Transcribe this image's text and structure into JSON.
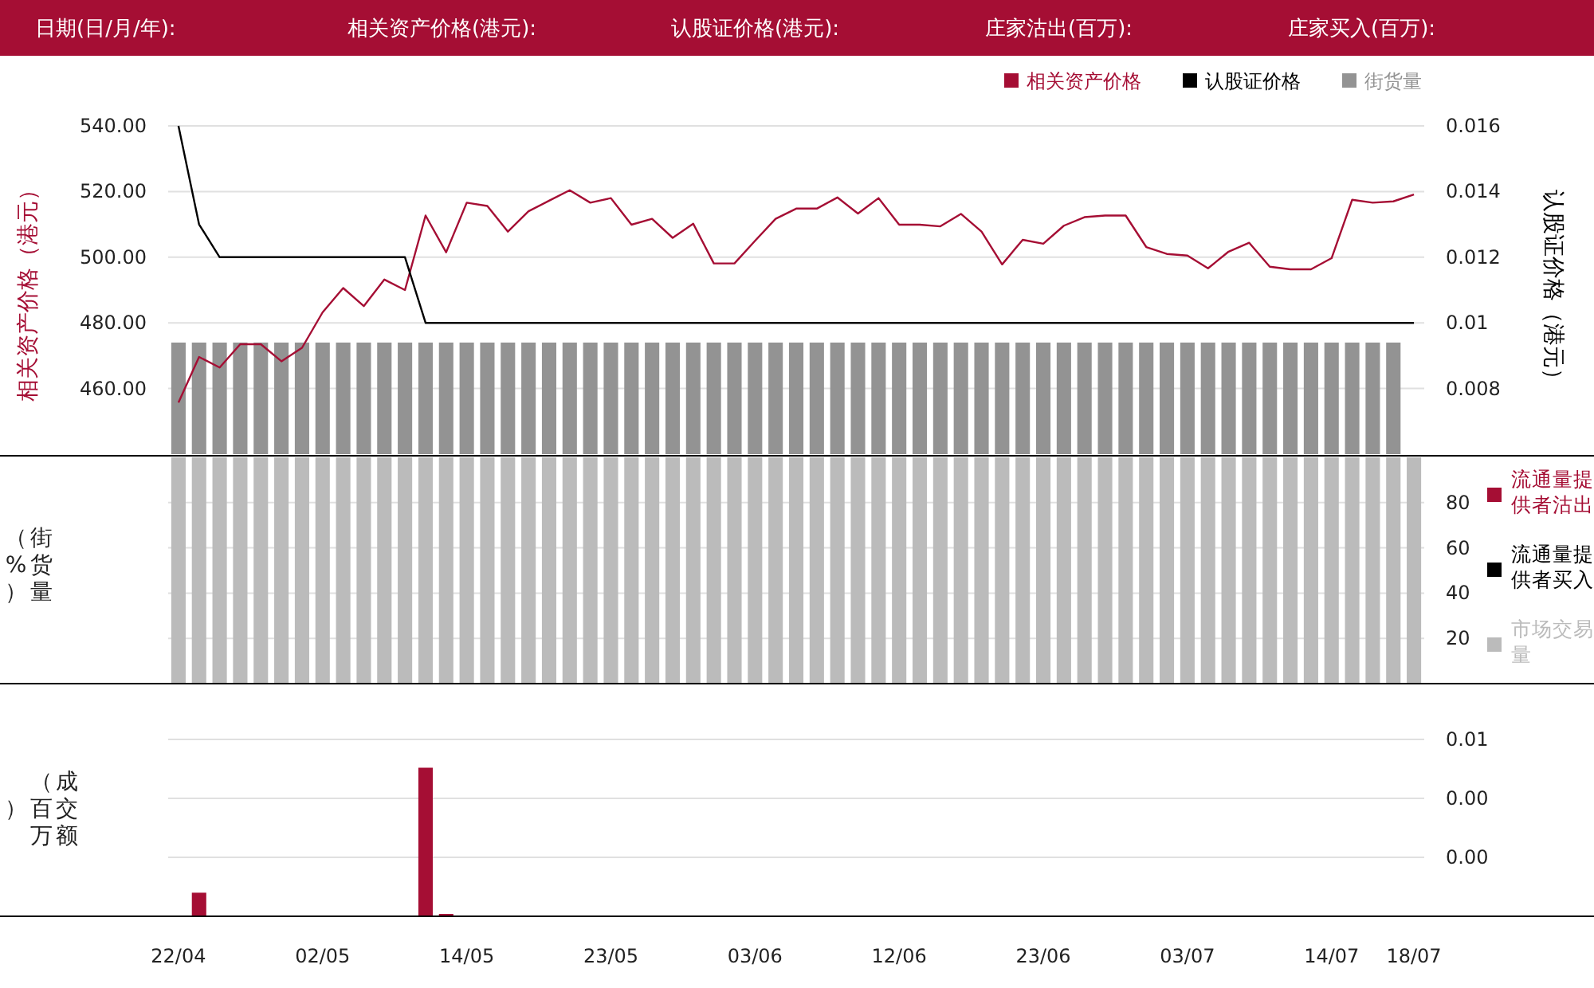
{
  "chart_data": [
    {
      "type": "line",
      "annotations": [
        "日期(日/月/年):",
        "相关资产价格(港元):",
        "认股证价格(港元):",
        "庄家沽出(百万):",
        "庄家买入(百万):"
      ],
      "ylabel": "相关资产价格（港元）",
      "y2label": "认股证价格（港元）",
      "categories": [
        null,
        null,
        null,
        null,
        null,
        null,
        null,
        null,
        null,
        null,
        null,
        null,
        null,
        null,
        null,
        null,
        null,
        null,
        null,
        null,
        null,
        null,
        null,
        null,
        null,
        null,
        null,
        null,
        null,
        null,
        null,
        null,
        null,
        null,
        null,
        null,
        null,
        null,
        null,
        null,
        null,
        null,
        null,
        null,
        null,
        null,
        null,
        null,
        null,
        null,
        null,
        null,
        null,
        null,
        null,
        null,
        null,
        null,
        null,
        null,
        null
      ],
      "ylim": [
        440,
        540
      ],
      "yticks": [
        {
          "value": 460,
          "label": "460.00"
        },
        {
          "value": 480,
          "label": "480.00"
        },
        {
          "value": 500,
          "label": "500.00"
        },
        {
          "value": 520,
          "label": "520.00"
        },
        {
          "value": 540,
          "label": "540.00"
        }
      ],
      "y2lim": [
        0.006,
        0.016
      ],
      "y2ticks": [
        0.008,
        0.01,
        0.012,
        0.014,
        0.016
      ],
      "grid": "y",
      "legend": "top right",
      "tick_labels": "y",
      "series": [
        {
          "name": "相关资产价格",
          "type": "line",
          "axis": "y",
          "color": "#a50e34",
          "values": [
            455.7,
            469.6,
            466.4,
            473.5,
            473.5,
            468.3,
            472.4,
            483.2,
            490.6,
            485.1,
            493.2,
            490.0,
            512.7,
            501.5,
            516.6,
            515.6,
            507.8,
            514.0,
            517.2,
            520.4,
            516.6,
            518.0,
            509.9,
            511.7,
            505.9,
            510.2,
            498.1,
            498.1,
            505.0,
            511.7,
            514.8,
            514.8,
            518.2,
            513.3,
            518.0,
            509.9,
            509.9,
            509.4,
            513.2,
            507.8,
            497.8,
            505.3,
            504.1,
            509.6,
            512.2,
            512.7,
            512.7,
            503.1,
            501.0,
            500.5,
            496.6,
            501.7,
            504.4,
            497.1,
            496.3,
            496.3,
            499.7,
            517.5,
            516.6,
            517.0,
            519.1
          ]
        },
        {
          "name": "认股证价格",
          "type": "line",
          "axis": "y2",
          "color": "#000000",
          "values": [
            0.016,
            0.013,
            0.012,
            0.012,
            0.012,
            0.012,
            0.012,
            0.012,
            0.012,
            0.012,
            0.012,
            0.012,
            0.01,
            0.01,
            0.01,
            0.01,
            0.01,
            0.01,
            0.01,
            0.01,
            0.01,
            0.01,
            0.01,
            0.01,
            0.01,
            0.01,
            0.01,
            0.01,
            0.01,
            0.01,
            0.01,
            0.01,
            0.01,
            0.01,
            0.01,
            0.01,
            0.01,
            0.01,
            0.01,
            0.01,
            0.01,
            0.01,
            0.01,
            0.01,
            0.01,
            0.01,
            0.01,
            0.01,
            0.01,
            0.01,
            0.01,
            0.01,
            0.01,
            0.01,
            0.01,
            0.01,
            0.01,
            0.01,
            0.01,
            0.01,
            0.01
          ]
        },
        {
          "name": "街货量",
          "type": "bar",
          "axis": "y",
          "color": "#939393",
          "values": [
            474,
            474,
            474,
            474,
            474,
            474,
            474,
            474,
            474,
            474,
            474,
            474,
            474,
            474,
            474,
            474,
            474,
            474,
            474,
            474,
            474,
            474,
            474,
            474,
            474,
            474,
            474,
            474,
            474,
            474,
            474,
            474,
            474,
            474,
            474,
            474,
            474,
            474,
            474,
            474,
            474,
            474,
            474,
            474,
            474,
            474,
            474,
            474,
            474,
            474,
            474,
            474,
            474,
            474,
            474,
            474,
            474,
            474,
            474,
            474,
            null
          ]
        }
      ]
    },
    {
      "type": "bar",
      "ylabel": "街货量（%）",
      "categories": [
        null,
        null,
        null,
        null,
        null,
        null,
        null,
        null,
        null,
        null,
        null,
        null,
        null,
        null,
        null,
        null,
        null,
        null,
        null,
        null,
        null,
        null,
        null,
        null,
        null,
        null,
        null,
        null,
        null,
        null,
        null,
        null,
        null,
        null,
        null,
        null,
        null,
        null,
        null,
        null,
        null,
        null,
        null,
        null,
        null,
        null,
        null,
        null,
        null,
        null,
        null,
        null,
        null,
        null,
        null,
        null,
        null,
        null,
        null,
        null,
        null
      ],
      "y2lim": [
        0,
        100
      ],
      "y2ticks": [
        20,
        40,
        60,
        80
      ],
      "grid": "y",
      "legend": "right",
      "tick_labels": "y",
      "series": [
        {
          "name": "流通量提供者沽出",
          "axis": "y2",
          "color": "#a50e34",
          "values": [
            null,
            null,
            null,
            null,
            null,
            null,
            null,
            null,
            null,
            null,
            null,
            null,
            null,
            null,
            null,
            null,
            null,
            null,
            null,
            null,
            null,
            null,
            null,
            null,
            null,
            null,
            null,
            null,
            null,
            null,
            null,
            null,
            null,
            null,
            null,
            null,
            null,
            null,
            null,
            null,
            null,
            null,
            null,
            null,
            null,
            null,
            null,
            null,
            null,
            null,
            null,
            null,
            null,
            null,
            null,
            null,
            null,
            null,
            null,
            null,
            null
          ]
        },
        {
          "name": "流通量提供者买入",
          "axis": "y2",
          "color": "#000000",
          "values": [
            null,
            null,
            null,
            null,
            null,
            null,
            null,
            null,
            null,
            null,
            null,
            null,
            null,
            null,
            null,
            null,
            null,
            null,
            null,
            null,
            null,
            null,
            null,
            null,
            null,
            null,
            null,
            null,
            null,
            null,
            null,
            null,
            null,
            null,
            null,
            null,
            null,
            null,
            null,
            null,
            null,
            null,
            null,
            null,
            null,
            null,
            null,
            null,
            null,
            null,
            null,
            null,
            null,
            null,
            null,
            null,
            null,
            null,
            null,
            null,
            null
          ]
        },
        {
          "name": "市场交易量",
          "axis": "y2",
          "color": "#bbbbbb",
          "values": [
            100,
            100,
            100,
            100,
            100,
            100,
            100,
            100,
            100,
            100,
            100,
            100,
            100,
            100,
            100,
            100,
            100,
            100,
            100,
            100,
            100,
            100,
            100,
            100,
            100,
            100,
            100,
            100,
            100,
            100,
            100,
            100,
            100,
            100,
            100,
            100,
            100,
            100,
            100,
            100,
            100,
            100,
            100,
            100,
            100,
            100,
            100,
            100,
            100,
            100,
            100,
            100,
            100,
            100,
            100,
            100,
            100,
            100,
            100,
            100,
            100
          ]
        }
      ]
    },
    {
      "type": "bar",
      "ylabel": "成交额（百万）",
      "categories": [
        "22/04",
        null,
        null,
        null,
        null,
        null,
        null,
        "02/05",
        null,
        null,
        null,
        null,
        null,
        null,
        "14/05",
        null,
        null,
        null,
        null,
        null,
        null,
        "23/05",
        null,
        null,
        null,
        null,
        null,
        null,
        "03/06",
        null,
        null,
        null,
        null,
        null,
        null,
        "12/06",
        null,
        null,
        null,
        null,
        null,
        null,
        "23/06",
        null,
        null,
        null,
        null,
        null,
        null,
        "03/07",
        null,
        null,
        null,
        null,
        null,
        null,
        "14/07",
        null,
        null,
        null,
        "18/07"
      ],
      "y2lim": [
        0,
        0.0075
      ],
      "y2ticks": [
        {
          "value": 0.0025,
          "label": "0.00"
        },
        {
          "value": 0.005,
          "label": "0.00"
        },
        {
          "value": 0.0075,
          "label": "0.01"
        }
      ],
      "grid": "y",
      "series": [
        {
          "axis": "y2",
          "color": "#a50e34",
          "values": [
            null,
            0.001,
            null,
            null,
            null,
            null,
            null,
            null,
            null,
            null,
            null,
            null,
            0.0063,
            0.0001,
            null,
            null,
            null,
            null,
            null,
            null,
            null,
            null,
            null,
            null,
            null,
            null,
            null,
            null,
            null,
            null,
            null,
            null,
            null,
            null,
            null,
            null,
            null,
            null,
            null,
            null,
            null,
            null,
            null,
            null,
            null,
            null,
            null,
            null,
            null,
            null,
            null,
            null,
            null,
            null,
            null,
            null,
            null,
            null,
            null,
            null,
            null
          ]
        }
      ]
    }
  ]
}
